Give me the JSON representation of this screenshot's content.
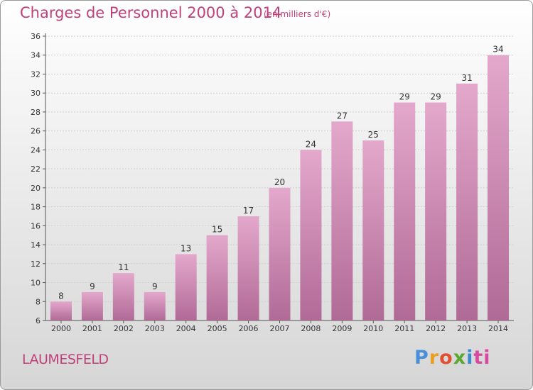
{
  "header": {
    "title": "Charges de Personnel 2000 à 2014",
    "unit": "(en milliers d'€)"
  },
  "footer": {
    "commune": "LAUMESFELD",
    "brand": [
      "P",
      "r",
      "o",
      "x",
      "i",
      "ti"
    ]
  },
  "colors": {
    "title": "#c0407a",
    "bar_top": "#e4a8cc",
    "bar_bottom": "#b06a96",
    "grid": "#cfcfcf"
  },
  "chart_data": {
    "type": "bar",
    "title": "Charges de Personnel 2000 à 2014",
    "subtitle": "(en milliers d'€)",
    "categories": [
      "2000",
      "2001",
      "2002",
      "2003",
      "2004",
      "2005",
      "2006",
      "2007",
      "2008",
      "2009",
      "2010",
      "2011",
      "2012",
      "2013",
      "2014"
    ],
    "values": [
      8,
      9,
      11,
      9,
      13,
      15,
      17,
      20,
      24,
      27,
      25,
      29,
      29,
      31,
      34
    ],
    "ylim": [
      6,
      36
    ],
    "yticks": [
      6,
      8,
      10,
      12,
      14,
      16,
      18,
      20,
      22,
      24,
      26,
      28,
      30,
      32,
      34,
      36
    ],
    "grid": true,
    "data_labels": true
  }
}
